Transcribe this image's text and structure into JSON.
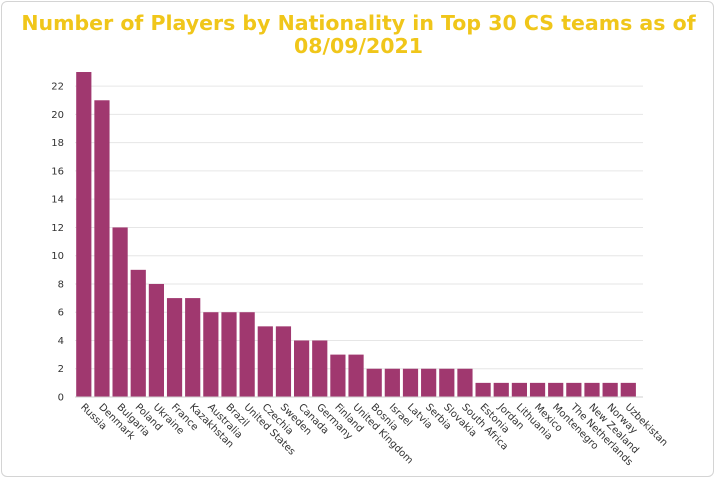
{
  "chart_data": {
    "type": "bar",
    "title_lines": [
      "Number of Players by Nationality in Top 30 CS teams as of",
      "08/09/2021"
    ],
    "xlabel": "",
    "ylabel": "",
    "ylim": [
      0,
      23
    ],
    "yticks": [
      0,
      2,
      4,
      6,
      8,
      10,
      12,
      14,
      16,
      18,
      20,
      22
    ],
    "grid": true,
    "bar_color": "#a0386f",
    "title_color": "#f0c61a",
    "categories": [
      "Russia",
      "Denmark",
      "Bulgaria",
      "Poland",
      "Ukraine",
      "France",
      "Kazakhstan",
      "Australia",
      "Brazil",
      "United States",
      "Czechia",
      "Sweden",
      "Canada",
      "Germany",
      "Finland",
      "United Kingdom",
      "Bosnia",
      "Israel",
      "Latvia",
      "Serbia",
      "Slovakia",
      "South Africa",
      "Estonia",
      "Jordan",
      "Lithuania",
      "Mexico",
      "Montenegro",
      "The Netherlands",
      "New Zealand",
      "Norway",
      "Uzbekistan"
    ],
    "values": [
      23,
      21,
      12,
      9,
      8,
      7,
      7,
      6,
      6,
      6,
      5,
      5,
      4,
      4,
      3,
      3,
      2,
      2,
      2,
      2,
      2,
      2,
      1,
      1,
      1,
      1,
      1,
      1,
      1,
      1,
      1
    ]
  }
}
